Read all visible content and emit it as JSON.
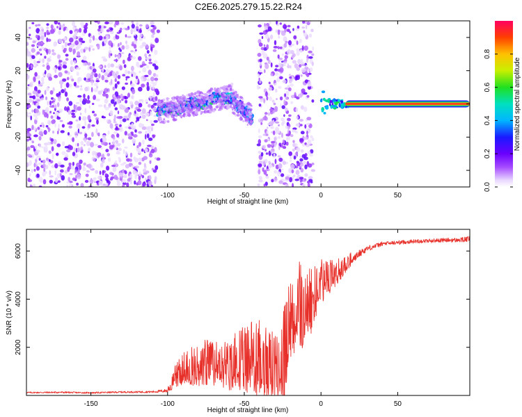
{
  "title": "C2E6.2025.279.15.22.R24",
  "chart_data": [
    {
      "type": "heatmap",
      "xlabel": "Height of straight line (km)",
      "ylabel": "Frequency (Hz)",
      "xlim": [
        -192,
        97
      ],
      "ylim": [
        -50,
        50
      ],
      "xticks": [
        "-150",
        "-100",
        "-50",
        "0",
        "50"
      ],
      "xtick_values": [
        -150,
        -100,
        -50,
        0,
        50
      ],
      "yticks": [
        "-40",
        "-20",
        "0",
        "20",
        "40"
      ],
      "ytick_values": [
        -40,
        -20,
        0,
        20,
        40
      ],
      "colorbar": {
        "label": "Normalized spectral amplitude",
        "range": [
          0,
          1
        ],
        "ticks": [
          "0.0",
          "0.2",
          "0.4",
          "0.6",
          "0.8"
        ],
        "tick_values": [
          0.0,
          0.2,
          0.4,
          0.6,
          0.8
        ]
      },
      "regions": [
        {
          "name": "noise",
          "x": [
            -192,
            -106
          ],
          "freq_range": [
            -50,
            50
          ],
          "amplitude": 0.1
        },
        {
          "name": "signal-track",
          "x": [
            -106,
            -58
          ],
          "freq_start": -5,
          "freq_end": 5,
          "amplitude": 0.55
        },
        {
          "name": "signal-segment",
          "x": [
            -58,
            -45
          ],
          "freq_start": 2,
          "freq_end": -8,
          "amplitude": 0.45
        },
        {
          "name": "noise",
          "x": [
            -41,
            -5
          ],
          "freq_range": [
            -50,
            50
          ],
          "amplitude": 0.12
        },
        {
          "name": "carrier",
          "x": [
            0,
            97
          ],
          "freq": 0,
          "amplitude": 0.95
        }
      ]
    },
    {
      "type": "line",
      "xlabel": "Height of straight line (km)",
      "ylabel": "SNR (10 * v/v)",
      "xlim": [
        -192,
        97
      ],
      "ylim": [
        0,
        6900
      ],
      "xticks": [
        "-150",
        "-100",
        "-50",
        "0",
        "50"
      ],
      "xtick_values": [
        -150,
        -100,
        -50,
        0,
        50
      ],
      "yticks": [
        "2000",
        "4000",
        "6000"
      ],
      "ytick_values": [
        2000,
        4000,
        6000
      ],
      "series": [
        {
          "name": "SNR",
          "color": "#e8302a",
          "x": [
            -192,
            -170,
            -150,
            -130,
            -110,
            -100,
            -95,
            -90,
            -85,
            -80,
            -75,
            -70,
            -65,
            -60,
            -55,
            -50,
            -45,
            -40,
            -35,
            -30,
            -27,
            -25,
            -22,
            -20,
            -17,
            -15,
            -12,
            -10,
            -7,
            -5,
            0,
            5,
            10,
            15,
            20,
            25,
            30,
            35,
            40,
            50,
            60,
            70,
            80,
            90,
            97
          ],
          "values": [
            120,
            130,
            110,
            140,
            150,
            200,
            700,
            950,
            1000,
            1050,
            1150,
            1000,
            1100,
            900,
            1200,
            1100,
            1300,
            1000,
            900,
            900,
            800,
            1100,
            1900,
            2300,
            3000,
            3400,
            3000,
            3700,
            3300,
            3900,
            4500,
            4700,
            5000,
            5300,
            5600,
            5900,
            6100,
            6200,
            6300,
            6350,
            6400,
            6420,
            6450,
            6450,
            6500
          ],
          "spread": [
            60,
            70,
            60,
            70,
            80,
            150,
            600,
            900,
            1000,
            1100,
            1200,
            1200,
            1200,
            1300,
            1500,
            1800,
            1900,
            2200,
            2000,
            1700,
            1400,
            2800,
            2500,
            2400,
            2300,
            2400,
            2300,
            2200,
            1900,
            1700,
            1200,
            900,
            700,
            500,
            350,
            300,
            250,
            200,
            180,
            170,
            160,
            170,
            180,
            200,
            220
          ]
        }
      ]
    }
  ]
}
